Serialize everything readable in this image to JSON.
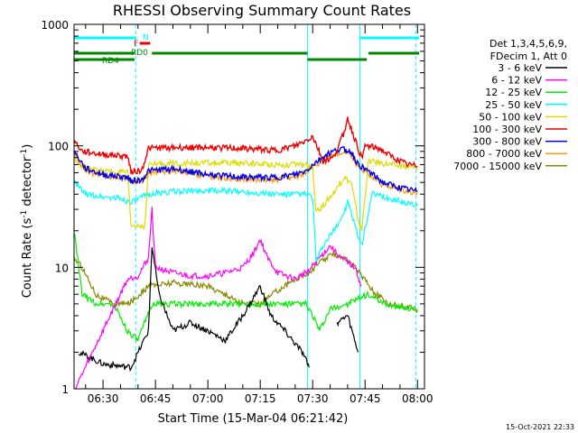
{
  "chart_data": {
    "type": "line",
    "title": "RHESSI Observing Summary Count Rates",
    "xlabel": "Start Time (15-Mar-04 06:21:42)",
    "ylabel_main": "Count Rate (s",
    "ylabel_sup1": "-1",
    "ylabel_mid": " detector",
    "ylabel_sup2": "-1",
    "ylabel_end": ")",
    "yscale": "log",
    "ylim": [
      1,
      1000
    ],
    "xlim": [
      "06:21:42",
      "08:02:00"
    ],
    "x_ticks": [
      "06:30",
      "06:45",
      "07:00",
      "07:15",
      "07:30",
      "07:45",
      "08:00"
    ],
    "y_ticks": [
      "1",
      "10",
      "100",
      "1000"
    ],
    "grid": false,
    "legend_placement": "right",
    "legend_header": [
      "Det 1,3,4,5,6,9,",
      "FDecim 1, Att 0"
    ],
    "timestamp": "15-Oct-2021 22:33",
    "flag_labels": {
      "night": "N",
      "flare": "F",
      "rd0": "RD0",
      "rd4": "RD4"
    },
    "colors": {
      "3-6": "#000000",
      "6-12": "#ff00ff",
      "12-25": "#00ee00",
      "25-50": "#00ffff",
      "50-100": "#dddd00",
      "100-300": "#ee0000",
      "300-800": "#0000ee",
      "800-7000": "#ff9900",
      "7000-15000": "#888800"
    },
    "series": [
      {
        "name": "3 - 6 keV",
        "key": "3-6",
        "points": [
          [
            "06:23",
            2
          ],
          [
            "06:30",
            1.6
          ],
          [
            "06:38",
            1.5
          ],
          [
            "06:43",
            3
          ],
          [
            "06:44",
            15
          ],
          [
            "06:46",
            6
          ],
          [
            "06:50",
            3
          ],
          [
            "06:55",
            3.5
          ],
          [
            "07:00",
            3
          ],
          [
            "07:05",
            2.5
          ],
          [
            "07:10",
            4
          ],
          [
            "07:15",
            7
          ],
          [
            "07:18",
            4
          ],
          [
            "07:22",
            3
          ],
          [
            "07:27",
            2
          ],
          [
            "07:29",
            1.5
          ]
        ],
        "gaps": [
          [
            "07:29",
            "07:37"
          ],
          [
            "07:44",
            "08:02"
          ]
        ],
        "points2": [
          [
            "07:37",
            3.5
          ],
          [
            "07:40",
            4
          ],
          [
            "07:43",
            2
          ]
        ]
      },
      {
        "name": "6 - 12 keV",
        "key": "6-12",
        "points": [
          [
            "06:22",
            1
          ],
          [
            "06:37",
            8
          ],
          [
            "06:40",
            8.5
          ],
          [
            "06:43",
            12
          ],
          [
            "06:44",
            30
          ],
          [
            "06:45",
            10
          ],
          [
            "06:50",
            9
          ],
          [
            "06:55",
            8.5
          ],
          [
            "07:00",
            8.5
          ],
          [
            "07:05",
            9
          ],
          [
            "07:10",
            10
          ],
          [
            "07:13",
            13
          ],
          [
            "07:15",
            17
          ],
          [
            "07:17",
            12
          ],
          [
            "07:20",
            9
          ],
          [
            "07:25",
            8
          ],
          [
            "07:29",
            9.5
          ],
          [
            "07:32",
            12
          ],
          [
            "07:35",
            15
          ],
          [
            "07:38",
            12
          ],
          [
            "07:42",
            10
          ],
          [
            "07:44",
            7
          ]
        ]
      },
      {
        "name": "12 - 25 keV",
        "key": "12-25",
        "points": [
          [
            "06:21:42",
            20
          ],
          [
            "06:24",
            6
          ],
          [
            "06:28",
            5
          ],
          [
            "06:33",
            5
          ],
          [
            "06:37",
            3
          ],
          [
            "06:40",
            2.5
          ],
          [
            "06:44",
            5
          ],
          [
            "06:50",
            5
          ],
          [
            "07:00",
            5
          ],
          [
            "07:10",
            5
          ],
          [
            "07:20",
            5
          ],
          [
            "07:28",
            5
          ],
          [
            "07:30",
            4
          ],
          [
            "07:32",
            3
          ],
          [
            "07:35",
            4.5
          ],
          [
            "07:40",
            5
          ],
          [
            "07:46",
            6
          ],
          [
            "07:50",
            5
          ],
          [
            "08:00",
            4.5
          ]
        ]
      },
      {
        "name": "25 - 50 keV",
        "key": "25-50",
        "points": [
          [
            "06:21:42",
            50
          ],
          [
            "06:25",
            40
          ],
          [
            "06:30",
            38
          ],
          [
            "06:35",
            37
          ],
          [
            "06:37",
            35
          ],
          [
            "06:39",
            35
          ],
          [
            "06:43",
            40
          ],
          [
            "06:50",
            42
          ],
          [
            "07:00",
            43
          ],
          [
            "07:10",
            42
          ],
          [
            "07:20",
            40
          ],
          [
            "07:28",
            40
          ],
          [
            "07:30",
            38
          ],
          [
            "07:31",
            11
          ],
          [
            "07:33",
            15
          ],
          [
            "07:36",
            20
          ],
          [
            "07:39",
            28
          ],
          [
            "07:40",
            35
          ],
          [
            "07:43",
            18
          ],
          [
            "07:44",
            15
          ],
          [
            "07:47",
            40
          ],
          [
            "07:50",
            38
          ],
          [
            "07:55",
            35
          ],
          [
            "08:00",
            32
          ]
        ]
      },
      {
        "name": "50 - 100 keV",
        "key": "50-100",
        "points": [
          [
            "06:21:42",
            80
          ],
          [
            "06:25",
            65
          ],
          [
            "06:30",
            62
          ],
          [
            "06:37",
            60
          ],
          [
            "06:38",
            22
          ],
          [
            "06:42",
            22
          ],
          [
            "06:43",
            70
          ],
          [
            "06:50",
            72
          ],
          [
            "07:00",
            72
          ],
          [
            "07:10",
            72
          ],
          [
            "07:20",
            70
          ],
          [
            "07:28",
            70
          ],
          [
            "07:30",
            65
          ],
          [
            "07:31",
            28
          ],
          [
            "07:34",
            35
          ],
          [
            "07:37",
            45
          ],
          [
            "07:39",
            55
          ],
          [
            "07:41",
            50
          ],
          [
            "07:43",
            25
          ],
          [
            "07:44",
            20
          ],
          [
            "07:46",
            75
          ],
          [
            "07:50",
            72
          ],
          [
            "07:55",
            68
          ],
          [
            "08:00",
            65
          ]
        ]
      },
      {
        "name": "100 - 300 keV",
        "key": "100-300",
        "points": [
          [
            "06:21:42",
            110
          ],
          [
            "06:24",
            90
          ],
          [
            "06:30",
            85
          ],
          [
            "06:37",
            82
          ],
          [
            "06:38",
            62
          ],
          [
            "06:41",
            62
          ],
          [
            "06:43",
            95
          ],
          [
            "06:50",
            97
          ],
          [
            "07:00",
            97
          ],
          [
            "07:10",
            95
          ],
          [
            "07:20",
            92
          ],
          [
            "07:25",
            100
          ],
          [
            "07:28",
            110
          ],
          [
            "07:30",
            120
          ],
          [
            "07:33",
            75
          ],
          [
            "07:36",
            80
          ],
          [
            "07:39",
            130
          ],
          [
            "07:40",
            170
          ],
          [
            "07:41",
            140
          ],
          [
            "07:43",
            95
          ],
          [
            "07:44",
            80
          ],
          [
            "07:45",
            100
          ],
          [
            "07:49",
            95
          ],
          [
            "07:53",
            80
          ],
          [
            "07:57",
            70
          ],
          [
            "08:00",
            68
          ]
        ]
      },
      {
        "name": "300 - 800 keV",
        "key": "300-800",
        "points": [
          [
            "06:21:42",
            90
          ],
          [
            "06:25",
            65
          ],
          [
            "06:30",
            58
          ],
          [
            "06:37",
            55
          ],
          [
            "06:38",
            52
          ],
          [
            "06:41",
            52
          ],
          [
            "06:43",
            62
          ],
          [
            "06:50",
            65
          ],
          [
            "07:00",
            58
          ],
          [
            "07:10",
            55
          ],
          [
            "07:20",
            55
          ],
          [
            "07:25",
            58
          ],
          [
            "07:28",
            62
          ],
          [
            "07:30",
            70
          ],
          [
            "07:34",
            85
          ],
          [
            "07:38",
            95
          ],
          [
            "07:41",
            90
          ],
          [
            "07:43",
            70
          ],
          [
            "07:45",
            65
          ],
          [
            "07:50",
            50
          ],
          [
            "07:55",
            45
          ],
          [
            "08:00",
            42
          ]
        ]
      },
      {
        "name": "800 - 7000 keV",
        "key": "800-7000",
        "points": [
          [
            "06:21:42",
            85
          ],
          [
            "06:25",
            62
          ],
          [
            "06:30",
            56
          ],
          [
            "06:37",
            54
          ],
          [
            "06:38",
            51
          ],
          [
            "06:41",
            51
          ],
          [
            "06:43",
            60
          ],
          [
            "06:50",
            62
          ],
          [
            "07:00",
            56
          ],
          [
            "07:10",
            53
          ],
          [
            "07:20",
            53
          ],
          [
            "07:25",
            56
          ],
          [
            "07:28",
            60
          ],
          [
            "07:30",
            66
          ],
          [
            "07:34",
            80
          ],
          [
            "07:38",
            88
          ],
          [
            "07:41",
            84
          ],
          [
            "07:43",
            66
          ],
          [
            "07:45",
            62
          ],
          [
            "07:50",
            48
          ],
          [
            "07:55",
            44
          ],
          [
            "08:00",
            41
          ]
        ]
      },
      {
        "name": "7000 - 15000 keV",
        "key": "7000-15000",
        "points": [
          [
            "06:21:42",
            12
          ],
          [
            "06:24",
            10
          ],
          [
            "06:28",
            6
          ],
          [
            "06:33",
            5
          ],
          [
            "06:37",
            5
          ],
          [
            "06:39",
            5.5
          ],
          [
            "06:43",
            7
          ],
          [
            "06:50",
            7.5
          ],
          [
            "07:00",
            7
          ],
          [
            "07:05",
            6
          ],
          [
            "07:10",
            5
          ],
          [
            "07:15",
            5
          ],
          [
            "07:20",
            6.5
          ],
          [
            "07:25",
            8
          ],
          [
            "07:29",
            9
          ],
          [
            "07:32",
            11
          ],
          [
            "07:36",
            13
          ],
          [
            "07:39",
            12
          ],
          [
            "07:42",
            10
          ],
          [
            "07:45",
            8
          ],
          [
            "07:48",
            6
          ],
          [
            "07:52",
            5
          ],
          [
            "08:00",
            4.5
          ]
        ]
      }
    ],
    "flags": {
      "night": [
        [
          "06:21:42",
          "06:39:30"
        ],
        [
          "07:43:40",
          "08:00:30"
        ]
      ],
      "flare": [
        [
          "06:40:30",
          "06:43:30"
        ]
      ],
      "rd0": [
        [
          "06:21:42",
          "06:39:00"
        ],
        [
          "06:44:00",
          "07:28:30"
        ],
        [
          "07:46:00",
          "08:00:30"
        ]
      ],
      "rd4": [
        [
          "06:21:42",
          "06:39:00"
        ],
        [
          "07:28:30",
          "07:45:30"
        ]
      ]
    },
    "vlines": [
      {
        "time": "06:39:20",
        "color": "#00ffff",
        "style": "dash"
      },
      {
        "time": "07:28:30",
        "color": "#00ffff",
        "style": "solid"
      },
      {
        "time": "07:43:30",
        "color": "#00ffff",
        "style": "solid"
      },
      {
        "time": "07:59:30",
        "color": "#00ffff",
        "style": "dash"
      }
    ]
  }
}
